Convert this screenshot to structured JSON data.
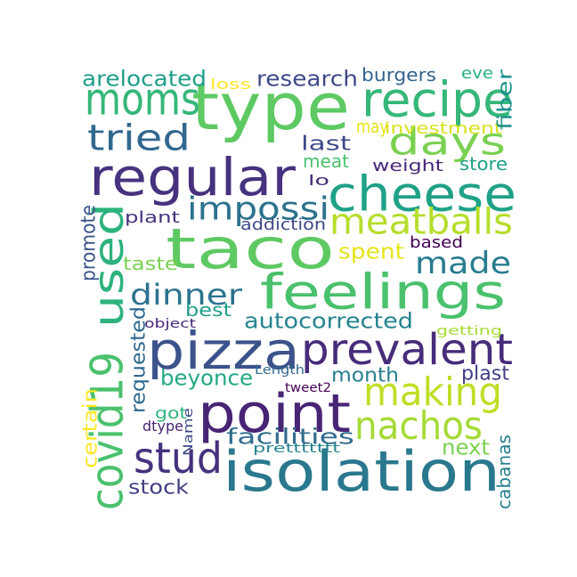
{
  "words": [
    {
      "text": "taco",
      "color": "#5ec962"
    },
    {
      "text": "type",
      "color": "#5ec962"
    },
    {
      "text": "regular",
      "color": "#46327e"
    },
    {
      "text": "cheese",
      "color": "#1fa187"
    },
    {
      "text": "feelings",
      "color": "#4ac16d"
    },
    {
      "text": "isolation",
      "color": "#2a788e"
    },
    {
      "text": "point",
      "color": "#482475"
    },
    {
      "text": "pizza",
      "color": "#3b528b"
    },
    {
      "text": "covid19",
      "color": "#4ac16d"
    },
    {
      "text": "prevalent",
      "color": "#472c7a"
    },
    {
      "text": "recipe",
      "color": "#35b779"
    },
    {
      "text": "moms",
      "color": "#35b779"
    },
    {
      "text": "making",
      "color": "#bddf26"
    },
    {
      "text": "nachos",
      "color": "#a5db36"
    },
    {
      "text": "meatballs",
      "color": "#b5de2b"
    },
    {
      "text": "used",
      "color": "#2db27d"
    },
    {
      "text": "stud",
      "color": "#46327e"
    },
    {
      "text": "days",
      "color": "#7ad151"
    },
    {
      "text": "tried",
      "color": "#31688e"
    },
    {
      "text": "impossi",
      "color": "#2c728e"
    },
    {
      "text": "dinner",
      "color": "#2c728e"
    },
    {
      "text": "made",
      "color": "#287c8e"
    },
    {
      "text": "facilities",
      "color": "#2f6c8e"
    },
    {
      "text": "autocorrected",
      "color": "#25838e"
    },
    {
      "text": "research",
      "color": "#3e4989"
    },
    {
      "text": "arelocated",
      "color": "#1f9e89"
    },
    {
      "text": "beyonce",
      "color": "#22a884"
    },
    {
      "text": "month",
      "color": "#287d8e"
    },
    {
      "text": "requested",
      "color": "#30698e"
    },
    {
      "text": "stock",
      "color": "#423f85"
    },
    {
      "text": "burgers",
      "color": "#33638d"
    },
    {
      "text": "last",
      "color": "#3e4989"
    },
    {
      "text": "meat",
      "color": "#4ac16d"
    },
    {
      "text": "spent",
      "color": "#e5e419"
    },
    {
      "text": "next",
      "color": "#7ad151"
    },
    {
      "text": "plast",
      "color": "#424086"
    },
    {
      "text": "best",
      "color": "#1f9e89"
    },
    {
      "text": "investment",
      "color": "#d8e219"
    },
    {
      "text": "fiber",
      "color": "#20928c"
    },
    {
      "text": "store",
      "color": "#1fa187"
    },
    {
      "text": "weight",
      "color": "#482878"
    },
    {
      "text": "plant",
      "color": "#46327e"
    },
    {
      "text": "addiction",
      "color": "#3e4989"
    },
    {
      "text": "based",
      "color": "#440154"
    },
    {
      "text": "taste",
      "color": "#7ad151"
    },
    {
      "text": "got",
      "color": "#2fb47c"
    },
    {
      "text": "promote",
      "color": "#3b528b"
    },
    {
      "text": "cabanas",
      "color": "#26828e"
    },
    {
      "text": "certain",
      "color": "#fde725"
    },
    {
      "text": "may",
      "color": "#e5e419"
    },
    {
      "text": "eve",
      "color": "#2db27d"
    },
    {
      "text": "loss",
      "color": "#fde725"
    },
    {
      "text": "getting",
      "color": "#a5db36"
    },
    {
      "text": "lo",
      "color": "#472c7a"
    },
    {
      "text": "object",
      "color": "#482878"
    },
    {
      "text": "dtype",
      "color": "#482475"
    },
    {
      "text": "tweet2",
      "color": "#440154"
    },
    {
      "text": "Length",
      "color": "#31688e"
    },
    {
      "text": "Name",
      "color": "#3e4989"
    },
    {
      "text": "prettttttt",
      "color": "#25838e"
    }
  ]
}
